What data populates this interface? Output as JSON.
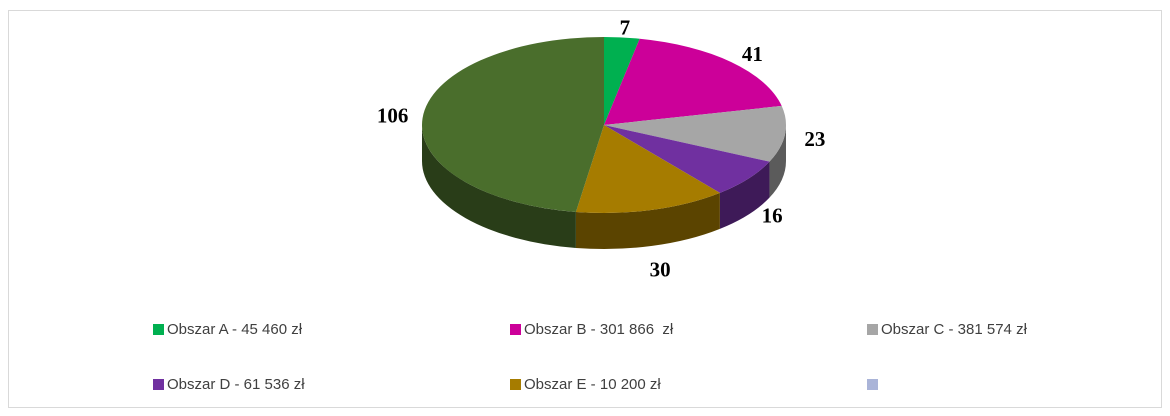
{
  "chart_data": {
    "type": "pie",
    "categories": [
      "Obszar A - 45 460 zł",
      "Obszar B - 301 866  zł",
      "Obszar C - 381 574 zł",
      "Obszar D - 61 536 zł",
      "Obszar E - 10 200 zł",
      null
    ],
    "values": [
      7,
      41,
      23,
      16,
      30,
      106
    ],
    "colors": [
      "#00b050",
      "#cc0099",
      "#a6a6a6",
      "#7030a0",
      "#a67c00",
      "#4a6e2c"
    ],
    "legend_colors": [
      "#00b050",
      "#cc0099",
      "#a6a6a6",
      "#7030a0",
      "#a67c00",
      "#aab4d8"
    ],
    "legend": "bottom",
    "3d": true
  }
}
